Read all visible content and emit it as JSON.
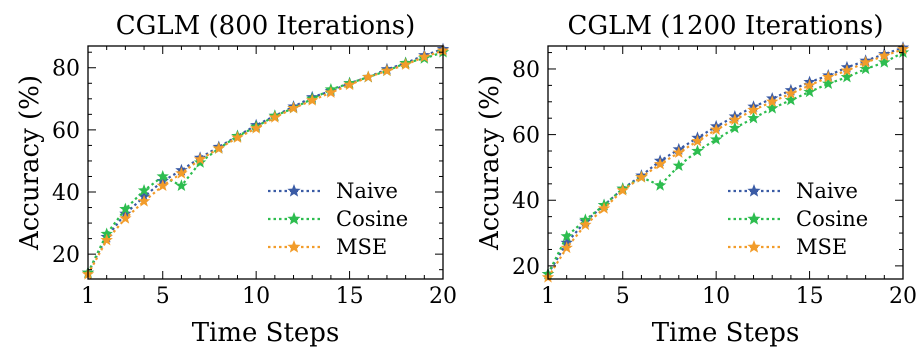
{
  "chart_data": [
    {
      "type": "line",
      "title": "CGLM (800 Iterations)",
      "xlabel": "Time Steps",
      "ylabel": "Accuracy (%)",
      "xlim": [
        1,
        20
      ],
      "ylim": [
        12,
        87
      ],
      "xticks": [
        1,
        5,
        10,
        15,
        20
      ],
      "yticks": [
        20,
        40,
        60,
        80
      ],
      "x": [
        1,
        2,
        3,
        4,
        5,
        6,
        7,
        8,
        9,
        10,
        11,
        12,
        13,
        14,
        15,
        16,
        17,
        18,
        19,
        20
      ],
      "legend_position": "lower-right",
      "grid": false,
      "series": [
        {
          "name": "Naive",
          "color": "#3a5ba5",
          "values": [
            14,
            25.5,
            33,
            38.5,
            43.5,
            47,
            51,
            54.5,
            58,
            61.5,
            64.5,
            67.5,
            70.5,
            72.5,
            75,
            77,
            79.5,
            81.5,
            84,
            86
          ]
        },
        {
          "name": "Cosine",
          "color": "#2dbd4f",
          "values": [
            14,
            26.5,
            34.5,
            40.5,
            45,
            42,
            49.5,
            54,
            58,
            61,
            64.5,
            67,
            70,
            73,
            75,
            77,
            79,
            81.5,
            83,
            85
          ]
        },
        {
          "name": "MSE",
          "color": "#f29c2a",
          "values": [
            13.5,
            24.5,
            31.5,
            37,
            42,
            46,
            50.5,
            54,
            57.5,
            60.5,
            64,
            67,
            69.5,
            72,
            74.5,
            77,
            79,
            81,
            83.5,
            85.5
          ]
        }
      ]
    },
    {
      "type": "line",
      "title": "CGLM (1200 Iterations)",
      "xlabel": "Time Steps",
      "ylabel": "Accuracy (%)",
      "xlim": [
        1,
        20
      ],
      "ylim": [
        16,
        87
      ],
      "xticks": [
        1,
        5,
        10,
        15,
        20
      ],
      "yticks": [
        20,
        40,
        60,
        80
      ],
      "x": [
        1,
        2,
        3,
        4,
        5,
        6,
        7,
        8,
        9,
        10,
        11,
        12,
        13,
        14,
        15,
        16,
        17,
        18,
        19,
        20
      ],
      "legend_position": "lower-right",
      "grid": false,
      "series": [
        {
          "name": "Naive",
          "color": "#3a5ba5",
          "values": [
            17.5,
            27,
            33.5,
            38.5,
            43.5,
            47.5,
            52,
            55.5,
            59,
            62.5,
            65.5,
            68.5,
            71,
            73.5,
            76,
            78,
            80.5,
            82.5,
            84.5,
            86.5
          ]
        },
        {
          "name": "Cosine",
          "color": "#2dbd4f",
          "values": [
            17.5,
            29,
            34,
            38.5,
            43.5,
            47,
            44.5,
            50.5,
            55,
            58.5,
            62,
            65,
            68,
            70.5,
            73,
            75.5,
            77.5,
            80,
            82,
            85
          ]
        },
        {
          "name": "MSE",
          "color": "#f29c2a",
          "values": [
            16.5,
            25.5,
            32.5,
            37.5,
            43,
            47,
            51,
            54.5,
            58,
            61.5,
            64.5,
            67.5,
            70,
            72.5,
            75,
            77.5,
            79.5,
            82,
            84,
            86
          ]
        }
      ]
    }
  ]
}
